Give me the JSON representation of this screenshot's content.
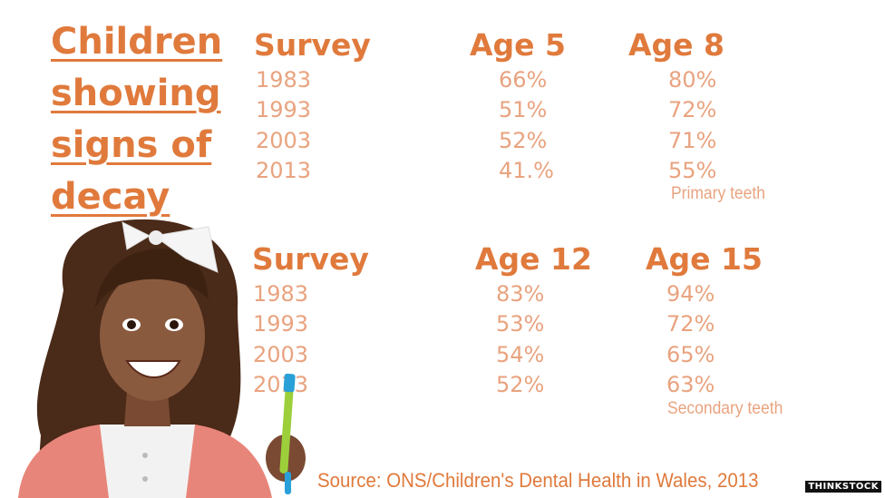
{
  "title_lines": [
    "Children",
    "showing",
    "signs of",
    "decay"
  ],
  "primary": {
    "headers": [
      "Survey",
      "Age 5",
      "Age  8"
    ],
    "rows": [
      [
        "1983",
        "66%",
        "80%"
      ],
      [
        "1993",
        "51%",
        "72%"
      ],
      [
        "2003",
        "52%",
        "71%"
      ],
      [
        "2013",
        "41.%",
        "55%"
      ]
    ],
    "note": "Primary teeth"
  },
  "secondary": {
    "headers": [
      "Survey",
      "Age 12",
      "Age  15"
    ],
    "rows": [
      [
        "1983",
        "83%",
        "94%"
      ],
      [
        "1993",
        "53%",
        "72%"
      ],
      [
        "2003",
        "54%",
        "65%"
      ],
      [
        "2013",
        "52%",
        "63%"
      ]
    ],
    "note": "Secondary teeth"
  },
  "source": "Source: ONS/Children's Dental Health in Wales, 2013",
  "credit": "THINKSTOCK",
  "colors": {
    "heading": "#e07a3c",
    "value": "#e9a37f"
  }
}
